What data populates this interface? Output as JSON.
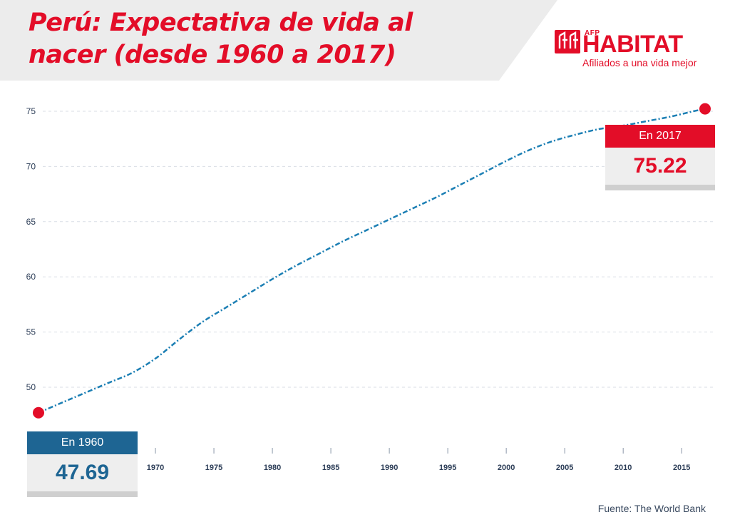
{
  "title": "Perú: Expectativa de vida al nacer (desde 1960 a 2017)",
  "logo": {
    "afp": "AFP",
    "name": "HABITAT",
    "tagline": "Afiliados a una vida mejor"
  },
  "colors": {
    "accent_red": "#e30d28",
    "accent_blue": "#1e6593",
    "line": "#1c7fb4",
    "header_bg": "#ececec"
  },
  "callouts": {
    "start": {
      "label": "En 1960",
      "value": "47.69"
    },
    "end": {
      "label": "En 2017",
      "value": "75.22"
    }
  },
  "source": "Fuente: The World Bank",
  "chart_data": {
    "type": "line",
    "title": "Perú: Expectativa de vida al nacer (desde 1960 a 2017)",
    "xlabel": "",
    "ylabel": "",
    "xlim": [
      1960,
      2017
    ],
    "ylim": [
      46,
      76
    ],
    "grid": true,
    "line_style": "dash-dot",
    "x_ticks": [
      1970,
      1975,
      1980,
      1985,
      1990,
      1995,
      2000,
      2005,
      2010,
      2015
    ],
    "y_ticks": [
      50,
      55,
      60,
      65,
      70,
      75
    ],
    "series": [
      {
        "x": [
          1960,
          1962,
          1964,
          1966,
          1968,
          1970,
          1972,
          1974,
          1976,
          1978,
          1980,
          1982,
          1984,
          1986,
          1988,
          1990,
          1992,
          1994,
          1996,
          1998,
          2000,
          2002,
          2004,
          2006,
          2008,
          2010,
          2012,
          2014,
          2016,
          2017
        ],
        "values": [
          47.69,
          48.6,
          49.5,
          50.4,
          51.3,
          52.6,
          54.3,
          55.9,
          57.2,
          58.5,
          59.8,
          61.0,
          62.1,
          63.2,
          64.2,
          65.2,
          66.2,
          67.2,
          68.3,
          69.4,
          70.5,
          71.5,
          72.3,
          72.9,
          73.4,
          73.7,
          74.1,
          74.5,
          75.0,
          75.22
        ]
      }
    ],
    "highlighted_points": [
      {
        "x": 1960,
        "y": 47.69,
        "label": "En 1960"
      },
      {
        "x": 2017,
        "y": 75.22,
        "label": "En 2017"
      }
    ]
  }
}
